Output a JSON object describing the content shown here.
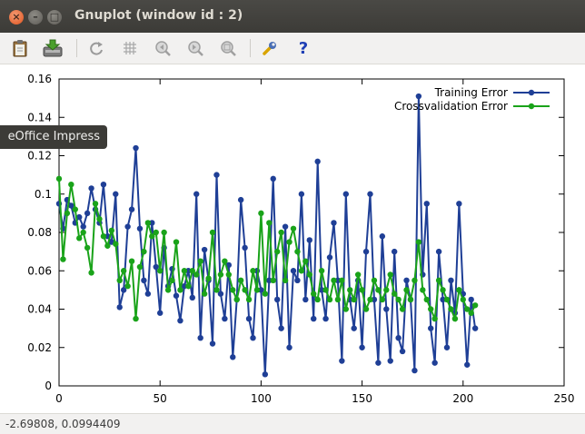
{
  "window": {
    "title": "Gnuplot (window id : 2)",
    "close_glyph": "×",
    "minimize_glyph": "–",
    "maximize_glyph": "□"
  },
  "toolbar": {
    "items": [
      "clipboard-icon",
      "export-icon",
      "replot-icon",
      "grid-icon",
      "zoom-previous-icon",
      "zoom-next-icon",
      "autoscale-icon",
      "config-icon",
      "help-icon"
    ],
    "help_glyph": "?"
  },
  "tooltip": {
    "text": "eOffice Impress"
  },
  "status": {
    "coordinates": "-2.69808,  0.0994409"
  },
  "colors": {
    "training": "#1f3f96",
    "crossvalidation": "#1aa31a"
  },
  "chart_data": {
    "type": "line",
    "xlim": [
      0,
      250
    ],
    "ylim": [
      0,
      0.16
    ],
    "x_ticks": [
      "0",
      "50",
      "100",
      "150",
      "200",
      "250"
    ],
    "y_ticks": [
      "0",
      "0.02",
      "0.04",
      "0.06",
      "0.08",
      "0.1",
      "0.12",
      "0.14",
      "0.16"
    ],
    "legend_position": "top-right",
    "series": [
      {
        "name": "Training Error",
        "x": [
          0,
          2,
          4,
          6,
          8,
          10,
          12,
          14,
          16,
          18,
          20,
          22,
          24,
          26,
          28,
          30,
          32,
          34,
          36,
          38,
          40,
          42,
          44,
          46,
          48,
          50,
          52,
          54,
          56,
          58,
          60,
          62,
          64,
          66,
          68,
          70,
          72,
          74,
          76,
          78,
          80,
          82,
          84,
          86,
          88,
          90,
          92,
          94,
          96,
          98,
          100,
          102,
          104,
          106,
          108,
          110,
          112,
          114,
          116,
          118,
          120,
          122,
          124,
          126,
          128,
          130,
          132,
          134,
          136,
          138,
          140,
          142,
          144,
          146,
          148,
          150,
          152,
          154,
          156,
          158,
          160,
          162,
          164,
          166,
          168,
          170,
          172,
          174,
          176,
          178,
          180,
          182,
          184,
          186,
          188,
          190,
          192,
          194,
          196,
          198,
          200,
          202,
          204,
          206
        ],
        "values": [
          0.095,
          0.082,
          0.097,
          0.094,
          0.085,
          0.088,
          0.083,
          0.09,
          0.103,
          0.092,
          0.085,
          0.105,
          0.078,
          0.075,
          0.1,
          0.041,
          0.05,
          0.083,
          0.092,
          0.124,
          0.082,
          0.055,
          0.048,
          0.085,
          0.062,
          0.038,
          0.072,
          0.052,
          0.061,
          0.047,
          0.034,
          0.052,
          0.06,
          0.046,
          0.1,
          0.025,
          0.071,
          0.055,
          0.022,
          0.11,
          0.048,
          0.035,
          0.063,
          0.015,
          0.045,
          0.097,
          0.072,
          0.035,
          0.025,
          0.06,
          0.05,
          0.006,
          0.055,
          0.108,
          0.045,
          0.03,
          0.083,
          0.02,
          0.06,
          0.055,
          0.1,
          0.045,
          0.076,
          0.035,
          0.117,
          0.05,
          0.035,
          0.067,
          0.085,
          0.055,
          0.013,
          0.1,
          0.045,
          0.03,
          0.055,
          0.02,
          0.07,
          0.1,
          0.045,
          0.012,
          0.078,
          0.04,
          0.013,
          0.07,
          0.025,
          0.018,
          0.055,
          0.045,
          0.008,
          0.151,
          0.058,
          0.095,
          0.03,
          0.012,
          0.07,
          0.045,
          0.02,
          0.055,
          0.038,
          0.095,
          0.048,
          0.011,
          0.045,
          0.03
        ]
      },
      {
        "name": "Crossvalidation Error",
        "x": [
          0,
          2,
          4,
          6,
          8,
          10,
          12,
          14,
          16,
          18,
          20,
          22,
          24,
          26,
          28,
          30,
          32,
          34,
          36,
          38,
          40,
          42,
          44,
          46,
          48,
          50,
          52,
          54,
          56,
          58,
          60,
          62,
          64,
          66,
          68,
          70,
          72,
          74,
          76,
          78,
          80,
          82,
          84,
          86,
          88,
          90,
          92,
          94,
          96,
          98,
          100,
          102,
          104,
          106,
          108,
          110,
          112,
          114,
          116,
          118,
          120,
          122,
          124,
          126,
          128,
          130,
          132,
          134,
          136,
          138,
          140,
          142,
          144,
          146,
          148,
          150,
          152,
          154,
          156,
          158,
          160,
          162,
          164,
          166,
          168,
          170,
          172,
          174,
          176,
          178,
          180,
          182,
          184,
          186,
          188,
          190,
          192,
          194,
          196,
          198,
          200,
          202,
          204,
          206
        ],
        "values": [
          0.108,
          0.066,
          0.09,
          0.105,
          0.092,
          0.077,
          0.08,
          0.072,
          0.059,
          0.095,
          0.087,
          0.078,
          0.073,
          0.081,
          0.074,
          0.055,
          0.06,
          0.052,
          0.065,
          0.035,
          0.062,
          0.07,
          0.085,
          0.078,
          0.08,
          0.06,
          0.08,
          0.05,
          0.055,
          0.075,
          0.05,
          0.06,
          0.052,
          0.06,
          0.058,
          0.065,
          0.048,
          0.056,
          0.08,
          0.05,
          0.058,
          0.065,
          0.058,
          0.05,
          0.045,
          0.055,
          0.05,
          0.045,
          0.06,
          0.05,
          0.09,
          0.048,
          0.085,
          0.055,
          0.07,
          0.08,
          0.055,
          0.075,
          0.082,
          0.07,
          0.06,
          0.065,
          0.058,
          0.048,
          0.045,
          0.06,
          0.05,
          0.045,
          0.055,
          0.045,
          0.055,
          0.04,
          0.05,
          0.045,
          0.058,
          0.05,
          0.04,
          0.045,
          0.055,
          0.05,
          0.045,
          0.05,
          0.058,
          0.048,
          0.045,
          0.04,
          0.05,
          0.045,
          0.055,
          0.075,
          0.05,
          0.045,
          0.04,
          0.035,
          0.055,
          0.05,
          0.045,
          0.04,
          0.035,
          0.05,
          0.045,
          0.04,
          0.038,
          0.042
        ]
      }
    ]
  }
}
